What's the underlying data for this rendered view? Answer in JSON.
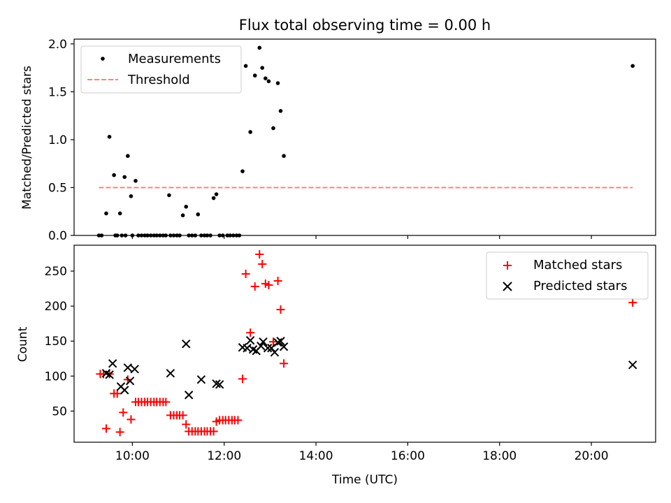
{
  "figure_title": "Flux total observing time = 0.00 h",
  "chart_data": [
    {
      "type": "scatter",
      "panel": "top",
      "title": "Flux total observing time = 0.00 h",
      "xlabel": "",
      "ylabel": "Matched/Predicted stars",
      "xlim": [
        8.73,
        21.4
      ],
      "ylim": [
        0,
        2.05
      ],
      "yticks": [
        0.0,
        0.5,
        1.0,
        1.5,
        2.0
      ],
      "ytick_labels": [
        "0.0",
        "0.5",
        "1.0",
        "1.5",
        "2.0"
      ],
      "legend_position": "top-left",
      "series": [
        {
          "name": "Measurements",
          "marker": "dot",
          "color": "#000000",
          "x": [
            9.27,
            9.33,
            9.43,
            9.5,
            9.6,
            9.63,
            9.67,
            9.73,
            9.77,
            9.83,
            9.85,
            9.9,
            9.97,
            10.0,
            10.07,
            10.13,
            10.2,
            10.27,
            10.33,
            10.4,
            10.47,
            10.53,
            10.6,
            10.67,
            10.73,
            10.8,
            10.83,
            10.9,
            10.97,
            11.03,
            11.1,
            11.17,
            11.23,
            11.3,
            11.37,
            11.43,
            11.5,
            11.57,
            11.63,
            11.7,
            11.77,
            11.83,
            11.9,
            11.97,
            12.07,
            12.13,
            12.2,
            12.27,
            12.33,
            12.4,
            12.47,
            12.57,
            12.67,
            12.77,
            12.83,
            12.9,
            12.97,
            13.07,
            13.17,
            13.23,
            13.3,
            20.9
          ],
          "y": [
            0,
            0,
            0.23,
            1.03,
            0.63,
            0,
            0,
            0.23,
            0,
            0.61,
            0,
            0.83,
            0.41,
            0,
            0.57,
            0,
            0,
            0,
            0,
            0,
            0,
            0,
            0,
            0,
            0,
            0.42,
            0,
            0,
            0,
            0,
            0.21,
            0.3,
            0,
            0,
            0,
            0.22,
            0,
            0,
            0,
            0,
            0.39,
            0.43,
            0,
            0,
            0,
            0,
            0,
            0,
            0,
            0.67,
            1.77,
            1.08,
            1.67,
            1.96,
            1.75,
            1.64,
            1.61,
            1.12,
            1.59,
            1.3,
            0.83,
            1.77
          ]
        },
        {
          "name": "Threshold",
          "style": "dashed",
          "color": "#ff7f7f",
          "x": [
            9.27,
            20.9
          ],
          "y": [
            0.5,
            0.5
          ]
        }
      ]
    },
    {
      "type": "scatter",
      "panel": "bottom",
      "title": "",
      "xlabel": "Time (UTC)",
      "ylabel": "Count",
      "xlim": [
        8.73,
        21.4
      ],
      "ylim": [
        5.5,
        287
      ],
      "xticks": [
        10,
        12,
        14,
        16,
        18,
        20
      ],
      "xtick_labels": [
        "10:00",
        "12:00",
        "14:00",
        "16:00",
        "18:00",
        "20:00"
      ],
      "yticks": [
        50,
        100,
        150,
        200,
        250
      ],
      "ytick_labels": [
        "50",
        "100",
        "150",
        "200",
        "250"
      ],
      "legend_position": "top-right",
      "series": [
        {
          "name": "Matched stars",
          "marker": "plus",
          "color": "#ff0000",
          "x": [
            9.3,
            9.37,
            9.43,
            9.5,
            9.6,
            9.67,
            9.73,
            9.8,
            9.9,
            9.97,
            10.07,
            10.13,
            10.2,
            10.27,
            10.33,
            10.4,
            10.47,
            10.53,
            10.6,
            10.67,
            10.73,
            10.83,
            10.9,
            10.97,
            11.03,
            11.1,
            11.17,
            11.23,
            11.3,
            11.37,
            11.43,
            11.5,
            11.57,
            11.63,
            11.7,
            11.77,
            11.83,
            11.9,
            11.97,
            12.03,
            12.1,
            12.17,
            12.23,
            12.3,
            12.4,
            12.47,
            12.57,
            12.67,
            12.77,
            12.83,
            12.9,
            12.97,
            13.07,
            13.17,
            13.23,
            13.3,
            20.9
          ],
          "y": [
            103,
            103,
            25,
            103,
            75,
            75,
            20,
            48,
            95,
            38,
            63,
            63,
            63,
            63,
            63,
            63,
            63,
            63,
            63,
            63,
            63,
            44,
            44,
            44,
            44,
            44,
            31,
            21,
            21,
            21,
            21,
            21,
            21,
            21,
            21,
            21,
            35,
            37,
            37,
            37,
            37,
            37,
            37,
            37,
            96,
            246,
            162,
            228,
            274,
            260,
            232,
            230,
            149,
            236,
            195,
            118,
            205
          ]
        },
        {
          "name": "Predicted stars",
          "marker": "x",
          "color": "#000000",
          "x": [
            9.43,
            9.5,
            9.57,
            9.75,
            9.83,
            9.9,
            9.95,
            10.05,
            10.83,
            11.17,
            11.23,
            11.5,
            11.83,
            11.9,
            12.4,
            12.5,
            12.57,
            12.63,
            12.7,
            12.8,
            12.85,
            12.95,
            13.03,
            13.1,
            13.17,
            13.23,
            13.3,
            20.9
          ],
          "y": [
            104,
            102,
            118,
            85,
            80,
            112,
            93,
            110,
            104,
            146,
            73,
            95,
            89,
            88,
            141,
            140,
            151,
            138,
            136,
            143,
            149,
            140,
            140,
            134,
            148,
            150,
            142,
            116
          ]
        }
      ]
    }
  ]
}
